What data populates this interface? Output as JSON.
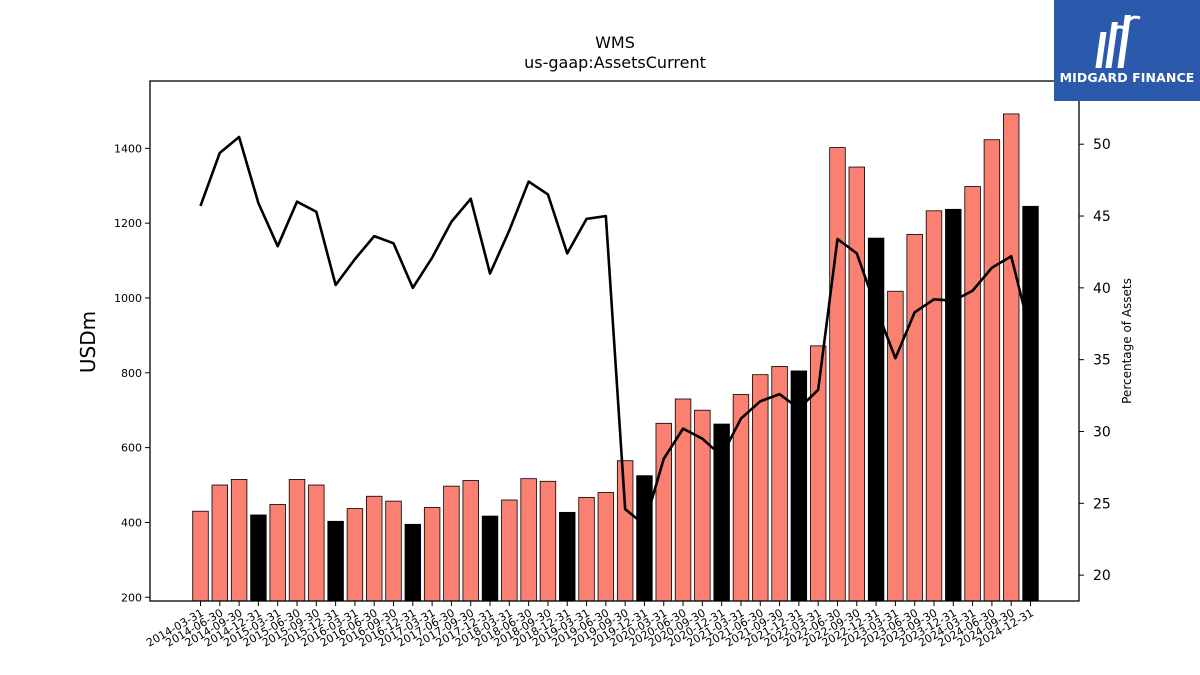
{
  "brand": {
    "name": "MIDGARD FINANCE",
    "bg_color": "#2b5aad"
  },
  "chart_data": {
    "type": "bar",
    "title": "WMS",
    "subtitle": "us-gaap:AssetsCurrent",
    "ylabel": "USDm",
    "y2label": "Percentage of Assets",
    "ylim": [
      190,
      1580
    ],
    "y2lim": [
      18.2,
      54.4
    ],
    "yticks": [
      200,
      400,
      600,
      800,
      1000,
      1200,
      1400
    ],
    "y2ticks": [
      20,
      25,
      30,
      35,
      40,
      45,
      50
    ],
    "grid": false,
    "colors": {
      "quarter": "#fa8072",
      "fiscal_year_end": "#000000",
      "line": "#000000"
    },
    "categories": [
      "2014-03-31",
      "2014-06-30",
      "2014-09-30",
      "2014-12-31",
      "2015-03-31",
      "2015-06-30",
      "2015-09-30",
      "2015-12-31",
      "2016-03-31",
      "2016-06-30",
      "2016-09-30",
      "2016-12-31",
      "2017-03-31",
      "2017-06-30",
      "2017-09-30",
      "2017-12-31",
      "2018-03-31",
      "2018-06-30",
      "2018-09-30",
      "2018-12-31",
      "2019-03-31",
      "2019-06-30",
      "2019-09-30",
      "2019-12-31",
      "2020-03-31",
      "2020-06-30",
      "2020-09-30",
      "2020-12-31",
      "2021-03-31",
      "2021-06-30",
      "2021-09-30",
      "2021-12-31",
      "2022-03-31",
      "2022-06-30",
      "2022-09-30",
      "2022-12-31",
      "2023-03-31",
      "2023-06-30",
      "2023-09-30",
      "2023-12-31",
      "2024-03-31",
      "2024-06-30",
      "2024-09-30",
      "2024-12-31"
    ],
    "fiscal_year_end": [
      false,
      false,
      false,
      true,
      false,
      false,
      false,
      true,
      false,
      false,
      false,
      true,
      false,
      false,
      false,
      true,
      false,
      false,
      false,
      true,
      false,
      false,
      false,
      true,
      false,
      false,
      false,
      true,
      false,
      false,
      false,
      true,
      false,
      false,
      false,
      true,
      false,
      false,
      false,
      true,
      false,
      false,
      false,
      true
    ],
    "series": [
      {
        "values": [
          430,
          500,
          515,
          420,
          448,
          515,
          500,
          403,
          437,
          470,
          457,
          395,
          440,
          497,
          512,
          417,
          460,
          517,
          510,
          427,
          467,
          480,
          565,
          525,
          665,
          730,
          700,
          663,
          742,
          795,
          817,
          805,
          872,
          1402,
          1350,
          1160,
          1018,
          1170,
          1233,
          1237,
          1298,
          1423,
          1492,
          1245
        ]
      },
      {
        "axis": "right",
        "values": [
          45.7,
          49.4,
          50.5,
          45.9,
          42.9,
          46.0,
          45.3,
          40.2,
          42.0,
          43.6,
          43.1,
          40.0,
          42.1,
          44.6,
          46.2,
          41.0,
          44.0,
          47.4,
          46.5,
          42.4,
          44.8,
          45.0,
          24.6,
          23.5,
          28.1,
          30.2,
          29.5,
          28.3,
          30.9,
          32.1,
          32.6,
          31.6,
          32.9,
          43.4,
          42.4,
          38.6,
          35.1,
          38.3,
          39.2,
          39.1,
          39.8,
          41.4,
          42.2,
          36.8
        ]
      }
    ]
  }
}
